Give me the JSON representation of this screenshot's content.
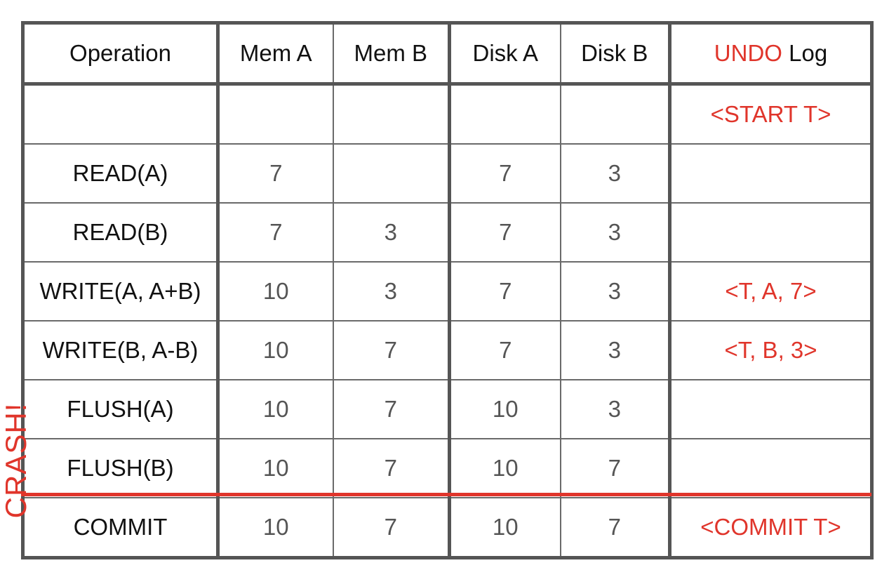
{
  "columns": {
    "operation": "Operation",
    "mem_a": "Mem A",
    "mem_b": "Mem B",
    "disk_a": "Disk A",
    "disk_b": "Disk B",
    "undo_prefix": "UNDO",
    "undo_suffix": " Log"
  },
  "rows": [
    {
      "op": "",
      "mem_a": "",
      "mem_b": "",
      "disk_a": "",
      "disk_b": "",
      "log": "<START T>"
    },
    {
      "op": "READ(A)",
      "mem_a": "7",
      "mem_b": "",
      "disk_a": "7",
      "disk_b": "3",
      "log": ""
    },
    {
      "op": "READ(B)",
      "mem_a": "7",
      "mem_b": "3",
      "disk_a": "7",
      "disk_b": "3",
      "log": ""
    },
    {
      "op": "WRITE(A, A+B)",
      "mem_a": "10",
      "mem_b": "3",
      "disk_a": "7",
      "disk_b": "3",
      "log": "<T, A, 7>"
    },
    {
      "op": "WRITE(B, A-B)",
      "mem_a": "10",
      "mem_b": "7",
      "disk_a": "7",
      "disk_b": "3",
      "log": "<T, B, 3>"
    },
    {
      "op": "FLUSH(A)",
      "mem_a": "10",
      "mem_b": "7",
      "disk_a": "10",
      "disk_b": "3",
      "log": ""
    },
    {
      "op": "FLUSH(B)",
      "mem_a": "10",
      "mem_b": "7",
      "disk_a": "10",
      "disk_b": "7",
      "log": ""
    },
    {
      "op": "COMMIT",
      "mem_a": "10",
      "mem_b": "7",
      "disk_a": "10",
      "disk_b": "7",
      "log": "<COMMIT T>"
    }
  ],
  "crash_label": "CRASH!",
  "colors": {
    "accent": "#e0352b",
    "border": "#555555",
    "value_text": "#555555"
  }
}
